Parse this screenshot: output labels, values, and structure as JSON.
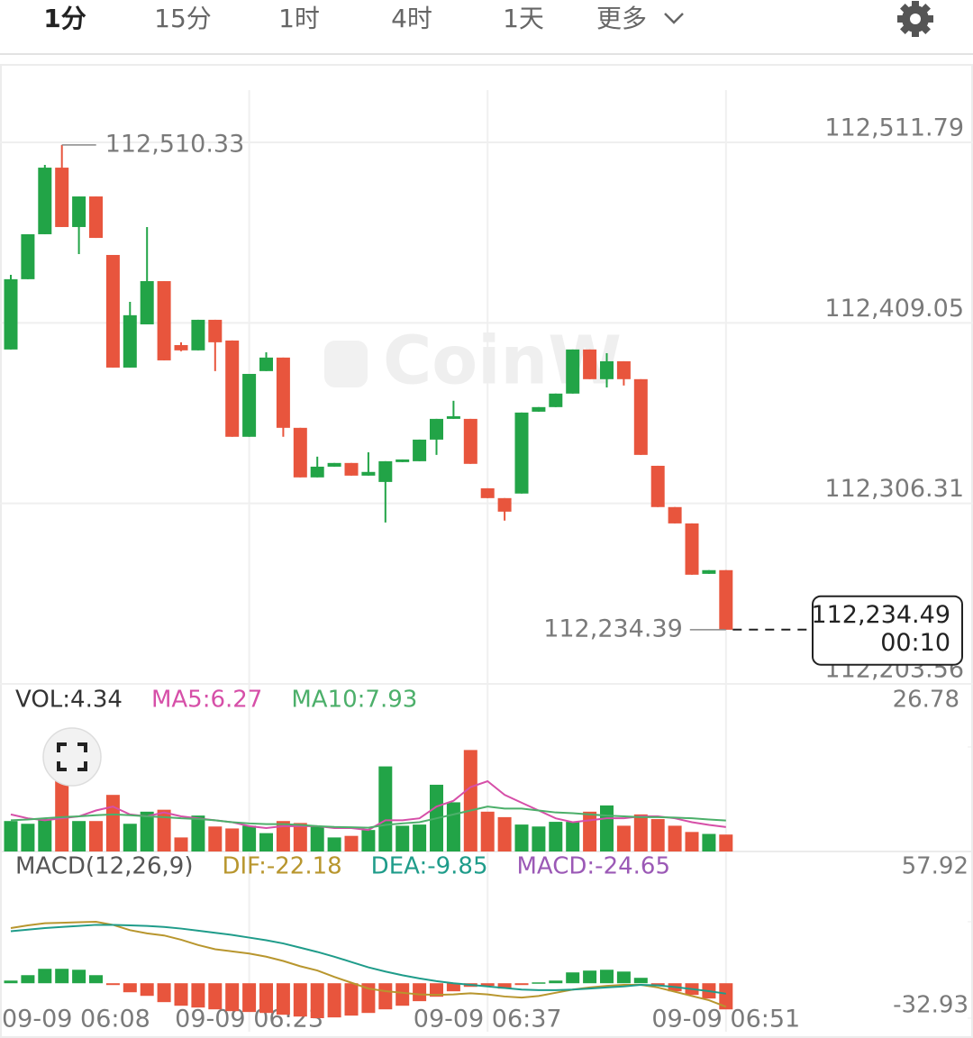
{
  "tabs": [
    "1分",
    "15分",
    "1时",
    "4时",
    "1天",
    "更多"
  ],
  "chart_data": [
    {
      "type": "candlestick",
      "categories": [
        "09-09 06:08",
        null,
        null,
        null,
        null,
        null,
        null,
        null,
        null,
        null,
        null,
        null,
        null,
        null,
        "09-09 06:23",
        null,
        null,
        null,
        null,
        null,
        null,
        null,
        null,
        null,
        null,
        null,
        null,
        null,
        "09-09 06:37",
        null,
        null,
        null,
        null,
        null,
        null,
        null,
        null,
        null,
        null,
        null,
        null,
        null,
        "09-09 06:51"
      ],
      "open": [
        112393.9,
        112433.9,
        112459.5,
        112497.4,
        112463.6,
        112481.0,
        112447.7,
        112383.6,
        112408.2,
        112432.8,
        112396.4,
        112393.4,
        112410.8,
        112399.0,
        112344.2,
        112381.6,
        112389.3,
        112349.3,
        112321.1,
        112327.2,
        112329.3,
        112322.1,
        112318.5,
        112329.8,
        112330.3,
        112342.6,
        112354.4,
        112354.4,
        112314.9,
        112309.3,
        112311.9,
        112358.5,
        112361.1,
        112368.8,
        112393.9,
        112377.0,
        112387.2,
        112377.0,
        112327.7,
        112304.2,
        112294.9,
        112266.2,
        112268.3
      ],
      "high": [
        112436.4,
        112459.5,
        112499.0,
        112510.33,
        112481.0,
        112481.0,
        112447.7,
        112421.0,
        112463.6,
        112432.8,
        112398.0,
        112410.8,
        112410.8,
        112399.0,
        112380.0,
        112392.3,
        112389.3,
        112349.3,
        112332.9,
        112329.3,
        112329.3,
        112335.4,
        112330.3,
        112331.3,
        112342.6,
        112354.4,
        112364.7,
        112354.4,
        112314.9,
        112309.3,
        112358.0,
        112361.1,
        112368.8,
        112393.9,
        112393.9,
        112391.8,
        112387.2,
        112377.0,
        112327.7,
        112304.2,
        112294.9,
        112268.3,
        112268.3
      ],
      "low": [
        112393.9,
        112433.9,
        112459.5,
        112463.6,
        112448.2,
        112457.4,
        112383.6,
        112383.6,
        112408.2,
        112387.7,
        112392.9,
        112393.4,
        112381.6,
        112344.2,
        112344.2,
        112381.6,
        112344.2,
        112321.1,
        112321.1,
        112327.2,
        112322.1,
        112322.1,
        112295.4,
        112329.8,
        112330.3,
        112333.9,
        112354.4,
        112328.8,
        112309.3,
        112296.5,
        112311.9,
        112358.5,
        112361.1,
        112368.8,
        112377.0,
        112372.3,
        112373.4,
        112333.9,
        112304.2,
        112294.9,
        112265.7,
        112266.2,
        112234.39
      ],
      "close": [
        112433.9,
        112459.5,
        112497.4,
        112463.6,
        112481.0,
        112457.4,
        112383.6,
        112413.4,
        112432.8,
        112387.7,
        112393.4,
        112410.8,
        112398.0,
        112344.2,
        112380.0,
        112389.3,
        112349.3,
        112321.1,
        112327.2,
        112329.3,
        112322.1,
        112324.2,
        112330.3,
        112331.3,
        112342.6,
        112354.4,
        112355.9,
        112328.8,
        112309.3,
        112301.6,
        112358.0,
        112361.1,
        112368.8,
        112393.9,
        112377.0,
        112387.2,
        112377.0,
        112333.9,
        112304.2,
        112294.9,
        112265.7,
        112268.3,
        112234.39
      ],
      "up_color": "#22a447",
      "down_color": "#e8553d",
      "ylim": [
        112203.56,
        112511.79
      ],
      "yticks": [
        {
          "value": 112511.79,
          "label": "112,511.79"
        },
        {
          "value": 112409.05,
          "label": "112,409.05"
        },
        {
          "value": 112306.31,
          "label": "112,306.31"
        },
        {
          "value": 112203.56,
          "label": "112,203.56"
        }
      ],
      "grid": true,
      "high_label": {
        "value": 112510.33,
        "label": "112,510.33"
      },
      "low_label": {
        "value": 112234.39,
        "label": "112,234.39"
      },
      "last_price": {
        "value": 112234.49,
        "label": "112,234.49"
      },
      "countdown": "00:10",
      "watermark": "CoinW"
    },
    {
      "type": "volume",
      "values": [
        7.8,
        7.1,
        8.3,
        21.3,
        7.8,
        7.8,
        14.5,
        7.1,
        10.2,
        10.7,
        3.6,
        9.2,
        6.4,
        5.9,
        6.6,
        4.7,
        7.8,
        7.3,
        6.4,
        3.6,
        4.0,
        5.5,
        21.8,
        6.6,
        6.9,
        17.1,
        12.6,
        26.0,
        10.2,
        8.8,
        6.9,
        6.4,
        7.6,
        7.6,
        10.2,
        11.8,
        6.6,
        9.5,
        8.3,
        6.6,
        5.0,
        4.5,
        4.34
      ],
      "lines": [
        {
          "color": "#d64fa8",
          "values": [
            9.5,
            8.5,
            8.0,
            8.5,
            9.0,
            10.5,
            11.5,
            9.5,
            9.0,
            10.0,
            9.0,
            8.5,
            8.0,
            7.5,
            6.5,
            6.0,
            6.5,
            6.5,
            6.5,
            6.0,
            6.0,
            5.5,
            8.0,
            8.0,
            8.5,
            11.5,
            13.0,
            16.5,
            18.0,
            14.5,
            12.5,
            10.5,
            8.5,
            7.5,
            8.0,
            8.5,
            8.5,
            9.0,
            9.0,
            8.5,
            7.5,
            6.8,
            6.27
          ]
        },
        {
          "color": "#4caf6a",
          "values": [
            8.0,
            8.2,
            8.5,
            8.8,
            9.0,
            9.3,
            9.5,
            9.3,
            9.0,
            8.8,
            8.5,
            8.3,
            8.0,
            7.5,
            7.2,
            7.0,
            7.0,
            6.8,
            6.5,
            6.3,
            6.2,
            6.1,
            6.8,
            7.2,
            7.5,
            8.5,
            9.5,
            10.5,
            11.5,
            11.0,
            11.0,
            10.5,
            10.0,
            9.8,
            9.5,
            9.2,
            9.0,
            8.8,
            8.8,
            8.7,
            8.5,
            8.2,
            7.93
          ]
        }
      ],
      "legend": [
        {
          "label": "VOL:4.34",
          "color": "#333333"
        },
        {
          "label": "MA5:6.27",
          "color": "#d64fa8"
        },
        {
          "label": "MA10:7.93",
          "color": "#4caf6a"
        }
      ],
      "ylim": [
        0,
        26.78
      ],
      "yticks": [
        26.78
      ]
    },
    {
      "type": "macd",
      "values": [
        2.5,
        7.6,
        13.6,
        13.6,
        12.7,
        7.6,
        -1.7,
        -8.5,
        -11.9,
        -17.8,
        -21.2,
        -22.9,
        -24.6,
        -26.3,
        -27.1,
        -28.0,
        -29.7,
        -31.4,
        -32.93,
        -32.2,
        -30.5,
        -28.0,
        -24.6,
        -21.2,
        -16.9,
        -12.7,
        -7.6,
        -3.4,
        -2.5,
        -5.1,
        -1.7,
        0.8,
        2.5,
        10.2,
        11.9,
        12.7,
        11.0,
        5.1,
        -2.5,
        -7.6,
        -11.0,
        -14.4,
        -24.65
      ],
      "lines": [
        {
          "color": "#b8962e",
          "values": [
            52.0,
            54.5,
            56.5,
            57.0,
            57.5,
            57.92,
            55.0,
            50.0,
            47.0,
            45.0,
            41.0,
            36.0,
            32.0,
            30.0,
            28.0,
            25.0,
            21.0,
            16.0,
            12.0,
            6.0,
            0.5,
            -5.0,
            -7.5,
            -9.0,
            -10.5,
            -11.0,
            -10.5,
            -9.5,
            -10.5,
            -12.5,
            -13.5,
            -12.0,
            -9.0,
            -6.0,
            -4.0,
            -2.5,
            -1.5,
            -1.5,
            -4.0,
            -8.0,
            -12.0,
            -16.0,
            -22.18
          ]
        },
        {
          "color": "#1f9c8a",
          "values": [
            49.0,
            50.5,
            52.0,
            53.0,
            54.0,
            55.0,
            55.0,
            54.5,
            54.0,
            53.0,
            51.5,
            49.5,
            47.5,
            45.5,
            43.0,
            40.5,
            37.5,
            33.5,
            29.5,
            25.0,
            20.0,
            15.0,
            11.0,
            7.5,
            4.5,
            2.0,
            0,
            -1.5,
            -3.0,
            -4.5,
            -6.0,
            -6.5,
            -6.5,
            -6.0,
            -5.0,
            -4.0,
            -3.0,
            -1.5,
            -2.0,
            -3.5,
            -5.5,
            -7.5,
            -9.85
          ]
        }
      ],
      "legend": [
        {
          "label": "MACD(12,26,9)",
          "color": "#555555"
        },
        {
          "label": "DIF:-22.18",
          "color": "#b8962e"
        },
        {
          "label": "DEA:-9.85",
          "color": "#1f9c8a"
        },
        {
          "label": "MACD:-24.65",
          "color": "#9b59b6"
        }
      ],
      "ylim": [
        -32.93,
        57.92
      ],
      "yticks": [
        57.92,
        -32.93
      ]
    }
  ]
}
